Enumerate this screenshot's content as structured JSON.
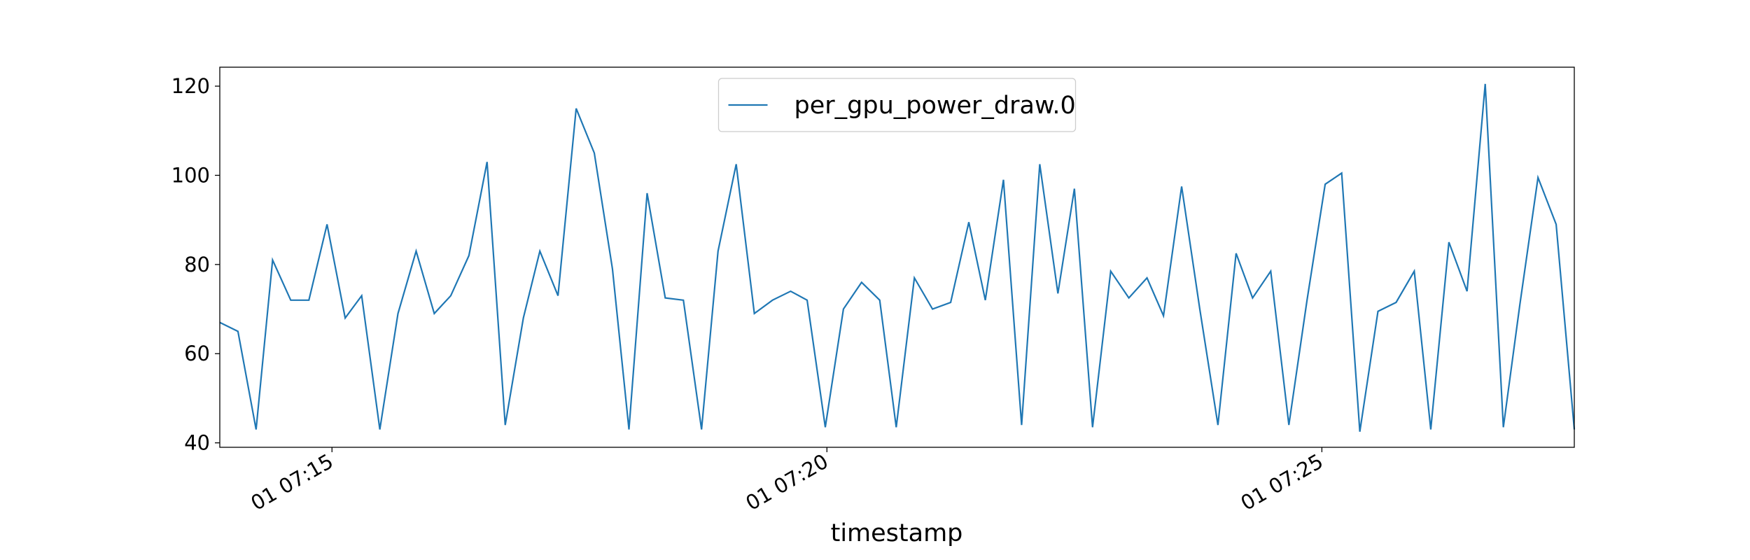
{
  "chart_data": {
    "type": "line",
    "x_label": "timestamp",
    "x": [
      "01 07:13:52",
      "01 07:14:03",
      "01 07:14:14",
      "01 07:14:24",
      "01 07:14:35",
      "01 07:14:46",
      "01 07:14:57",
      "01 07:15:08",
      "01 07:15:18",
      "01 07:15:29",
      "01 07:15:40",
      "01 07:15:51",
      "01 07:16:02",
      "01 07:16:12",
      "01 07:16:23",
      "01 07:16:34",
      "01 07:16:45",
      "01 07:16:56",
      "01 07:17:06",
      "01 07:17:17",
      "01 07:17:28",
      "01 07:17:39",
      "01 07:17:50",
      "01 07:18:00",
      "01 07:18:11",
      "01 07:18:22",
      "01 07:18:33",
      "01 07:18:44",
      "01 07:18:54",
      "01 07:19:05",
      "01 07:19:16",
      "01 07:19:27",
      "01 07:19:38",
      "01 07:19:48",
      "01 07:19:59",
      "01 07:20:10",
      "01 07:20:21",
      "01 07:20:32",
      "01 07:20:42",
      "01 07:20:53",
      "01 07:21:04",
      "01 07:21:15",
      "01 07:21:26",
      "01 07:21:36",
      "01 07:21:47",
      "01 07:21:58",
      "01 07:22:09",
      "01 07:22:20",
      "01 07:22:30",
      "01 07:22:41",
      "01 07:22:52",
      "01 07:23:03",
      "01 07:23:14",
      "01 07:23:24",
      "01 07:23:35",
      "01 07:23:46",
      "01 07:23:57",
      "01 07:24:08",
      "01 07:24:18",
      "01 07:24:29",
      "01 07:24:40",
      "01 07:24:51",
      "01 07:25:02",
      "01 07:25:12",
      "01 07:25:23",
      "01 07:25:34",
      "01 07:25:45",
      "01 07:25:56",
      "01 07:26:06",
      "01 07:26:17",
      "01 07:26:28",
      "01 07:26:39",
      "01 07:26:50",
      "01 07:27:00",
      "01 07:27:11",
      "01 07:27:22",
      "01 07:27:33"
    ],
    "series": [
      {
        "name": "per_gpu_power_draw.0",
        "color": "#1f77b4",
        "values": [
          67,
          65,
          43,
          81,
          72,
          72,
          89,
          68,
          73,
          43,
          69,
          83,
          69,
          73,
          82,
          103,
          44,
          68,
          83,
          73,
          115,
          105,
          79,
          43,
          96,
          72.5,
          72,
          43,
          83,
          102.5,
          69,
          72,
          74,
          72,
          43.5,
          70,
          76,
          72,
          43.5,
          77,
          70,
          71.5,
          89.5,
          72,
          99,
          44,
          102.5,
          73.5,
          97,
          43.5,
          78.5,
          72.5,
          77,
          68.5,
          97.5,
          70,
          44,
          82.5,
          72.5,
          78.5,
          44,
          72,
          98,
          100.5,
          42.5,
          69.5,
          71.5,
          78.5,
          43,
          85,
          74,
          120.5,
          43.5,
          71,
          99.5,
          89,
          43
        ]
      }
    ],
    "xlim": [
      "01 07:13:52",
      "01 07:27:33"
    ],
    "xticks": [
      {
        "value": "01 07:15:00",
        "label": "01 07:15"
      },
      {
        "value": "01 07:20:00",
        "label": "01 07:20"
      },
      {
        "value": "01 07:25:00",
        "label": "01 07:25"
      }
    ],
    "ylim": [
      39,
      124.25
    ],
    "yticks": [
      40,
      60,
      80,
      100,
      120
    ],
    "legend": "upper center"
  }
}
